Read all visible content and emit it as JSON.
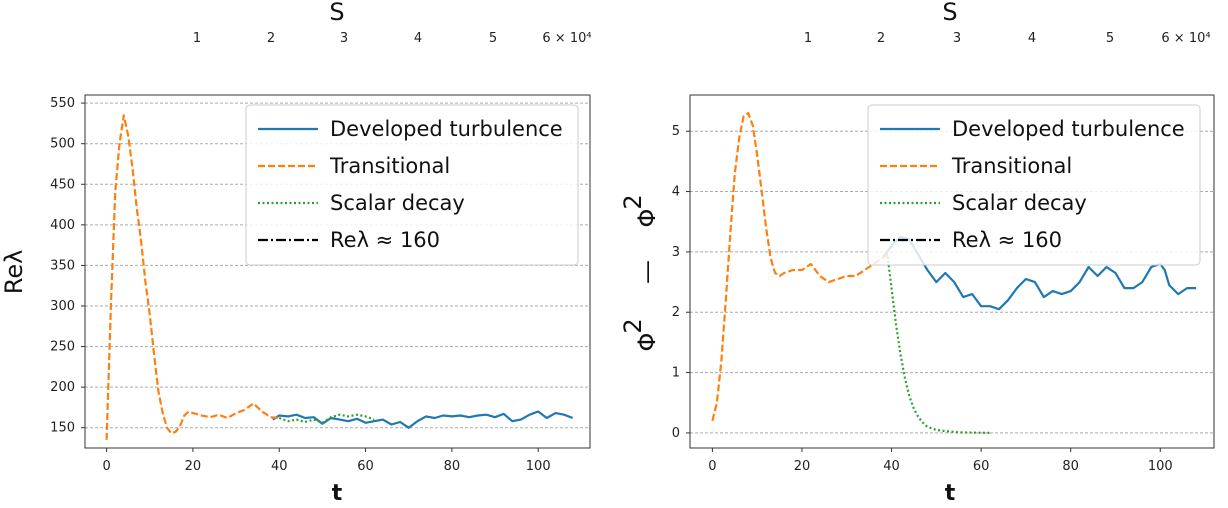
{
  "chart_data": [
    {
      "type": "line",
      "top_axis": {
        "label": "S",
        "ticks": [
          "1",
          "2",
          "3",
          "4",
          "5",
          "6 × 10⁴"
        ]
      },
      "xlabel": "t",
      "ylabel": "Reλ",
      "xlim": [
        -5,
        112
      ],
      "ylim": [
        125,
        560
      ],
      "xticks": [
        0,
        20,
        40,
        60,
        80,
        100
      ],
      "yticks": [
        150,
        200,
        250,
        300,
        350,
        400,
        450,
        500,
        550
      ],
      "grid": "horizontal-dashed",
      "legend_position": "top-right",
      "legend": [
        {
          "label": "Developed turbulence",
          "color": "#1f77b4",
          "style": "solid"
        },
        {
          "label": "Transitional",
          "color": "#ff7f0e",
          "style": "dashed"
        },
        {
          "label": "Scalar decay",
          "color": "#2ca02c",
          "style": "dotted"
        },
        {
          "label": "Reλ ≈ 160",
          "color": "#000000",
          "style": "dashdot"
        }
      ],
      "series": [
        {
          "name": "Developed turbulence",
          "color": "#1f77b4",
          "style": "solid",
          "x": [
            38.5,
            40,
            42,
            44,
            46,
            48,
            50,
            52,
            54,
            56,
            58,
            60,
            62,
            64,
            66,
            68,
            70,
            72,
            74,
            76,
            78,
            80,
            82,
            84,
            86,
            88,
            90,
            92,
            94,
            96,
            98,
            100,
            102,
            104,
            106,
            108
          ],
          "y": [
            160,
            165,
            164,
            166,
            162,
            163,
            155,
            162,
            160,
            158,
            161,
            156,
            158,
            160,
            154,
            157,
            150,
            158,
            164,
            162,
            165,
            164,
            165,
            163,
            165,
            166,
            163,
            167,
            158,
            160,
            166,
            170,
            162,
            168,
            166,
            162
          ]
        },
        {
          "name": "Transitional",
          "color": "#ff7f0e",
          "style": "dashed",
          "x": [
            0,
            1,
            2,
            3,
            4,
            5,
            6,
            7,
            8,
            9,
            10,
            11,
            12,
            13,
            14,
            15,
            16,
            17,
            18,
            19,
            20,
            22,
            24,
            26,
            28,
            30,
            32,
            34,
            36,
            38,
            40
          ],
          "y": [
            135,
            300,
            440,
            500,
            535,
            510,
            470,
            420,
            380,
            330,
            290,
            240,
            195,
            168,
            150,
            143,
            145,
            152,
            165,
            170,
            168,
            165,
            163,
            166,
            162,
            168,
            172,
            180,
            170,
            163,
            162
          ]
        },
        {
          "name": "Scalar decay",
          "color": "#2ca02c",
          "style": "dotted",
          "x": [
            40,
            42,
            44,
            46,
            48,
            50,
            52,
            54,
            56,
            58,
            60,
            62
          ],
          "y": [
            162,
            158,
            160,
            157,
            160,
            156,
            163,
            166,
            164,
            166,
            164,
            160
          ]
        }
      ]
    },
    {
      "type": "line",
      "top_axis": {
        "label": "S",
        "ticks": [
          "1",
          "2",
          "3",
          "4",
          "5",
          "6 × 10⁴"
        ]
      },
      "xlabel": "t",
      "ylabel_left": "Φ",
      "ylabel_left_exp": "2",
      "ylabel_mid": "—",
      "ylabel_right": "Φ",
      "ylabel_right_exp": "2",
      "xlim": [
        -5,
        112
      ],
      "ylim": [
        -0.25,
        5.6
      ],
      "xticks": [
        0,
        20,
        40,
        60,
        80,
        100
      ],
      "yticks": [
        0,
        1,
        2,
        3,
        4,
        5
      ],
      "grid": "horizontal-dashed",
      "legend_position": "top-right",
      "legend": [
        {
          "label": "Developed turbulence",
          "color": "#1f77b4",
          "style": "solid"
        },
        {
          "label": "Transitional",
          "color": "#ff7f0e",
          "style": "dashed"
        },
        {
          "label": "Scalar decay",
          "color": "#2ca02c",
          "style": "dotted"
        },
        {
          "label": "Reλ ≈ 160",
          "color": "#000000",
          "style": "dashdot"
        }
      ],
      "series": [
        {
          "name": "Developed turbulence",
          "color": "#1f77b4",
          "style": "solid",
          "x": [
            38,
            40,
            42,
            44,
            46,
            48,
            50,
            52,
            54,
            56,
            58,
            60,
            62,
            64,
            66,
            68,
            70,
            72,
            74,
            76,
            78,
            80,
            82,
            84,
            86,
            88,
            90,
            92,
            94,
            96,
            98,
            100,
            101,
            102,
            104,
            106,
            108
          ],
          "y": [
            2.9,
            3.1,
            3.25,
            3.2,
            2.95,
            2.7,
            2.5,
            2.65,
            2.5,
            2.25,
            2.3,
            2.1,
            2.1,
            2.05,
            2.2,
            2.4,
            2.55,
            2.5,
            2.25,
            2.35,
            2.3,
            2.35,
            2.5,
            2.75,
            2.6,
            2.75,
            2.65,
            2.4,
            2.4,
            2.5,
            2.75,
            2.8,
            2.7,
            2.45,
            2.3,
            2.4,
            2.4
          ]
        },
        {
          "name": "Transitional",
          "color": "#ff7f0e",
          "style": "dashed",
          "x": [
            0,
            1,
            2,
            3,
            4,
            5,
            6,
            7,
            8,
            9,
            10,
            11,
            12,
            13,
            14,
            15,
            16,
            18,
            20,
            22,
            24,
            26,
            28,
            30,
            32,
            34,
            36,
            38,
            40
          ],
          "y": [
            0.2,
            0.5,
            1.2,
            2.2,
            3.3,
            4.3,
            4.9,
            5.25,
            5.3,
            5.1,
            4.6,
            4.0,
            3.4,
            2.9,
            2.65,
            2.6,
            2.65,
            2.7,
            2.7,
            2.8,
            2.6,
            2.5,
            2.55,
            2.6,
            2.6,
            2.7,
            2.8,
            2.9,
            3.0
          ]
        },
        {
          "name": "Scalar decay",
          "color": "#2ca02c",
          "style": "dotted",
          "x": [
            39,
            40,
            41,
            42,
            43,
            44,
            45,
            46,
            47,
            48,
            50,
            52,
            55,
            58,
            62
          ],
          "y": [
            3.0,
            2.4,
            1.8,
            1.3,
            0.9,
            0.6,
            0.4,
            0.26,
            0.17,
            0.1,
            0.05,
            0.03,
            0.01,
            0.005,
            0.0
          ]
        }
      ]
    }
  ]
}
